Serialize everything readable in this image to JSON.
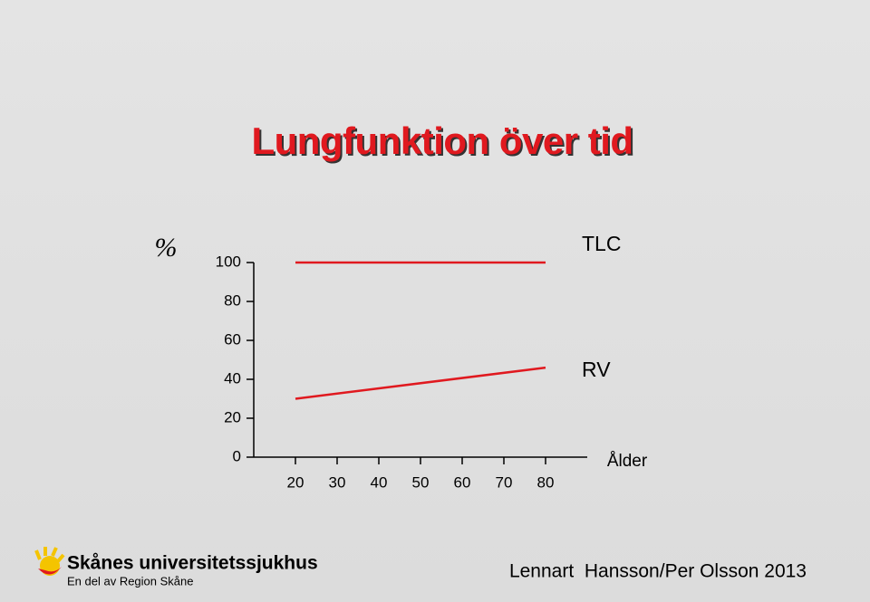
{
  "chart_data": {
    "type": "line",
    "title": "Lungfunktion över tid",
    "ylabel": "%",
    "xlabel": "Ålder",
    "x": [
      20,
      80
    ],
    "series": [
      {
        "name": "TLC",
        "color": "#e0191f",
        "values": [
          100,
          100
        ]
      },
      {
        "name": "RV",
        "color": "#e0191f",
        "values": [
          30,
          46
        ]
      }
    ],
    "xlim": [
      10,
      90
    ],
    "xticks": [
      20,
      30,
      40,
      50,
      60,
      70,
      80
    ],
    "ylim": [
      0,
      100
    ],
    "yticks": [
      0,
      20,
      40,
      60,
      80,
      100
    ]
  },
  "footer": {
    "logo_name": "Skånes universitetssjukhus",
    "logo_sub": "En del av Region Skåne",
    "credit": "Lennart  Hansson/Per Olsson 2013"
  }
}
